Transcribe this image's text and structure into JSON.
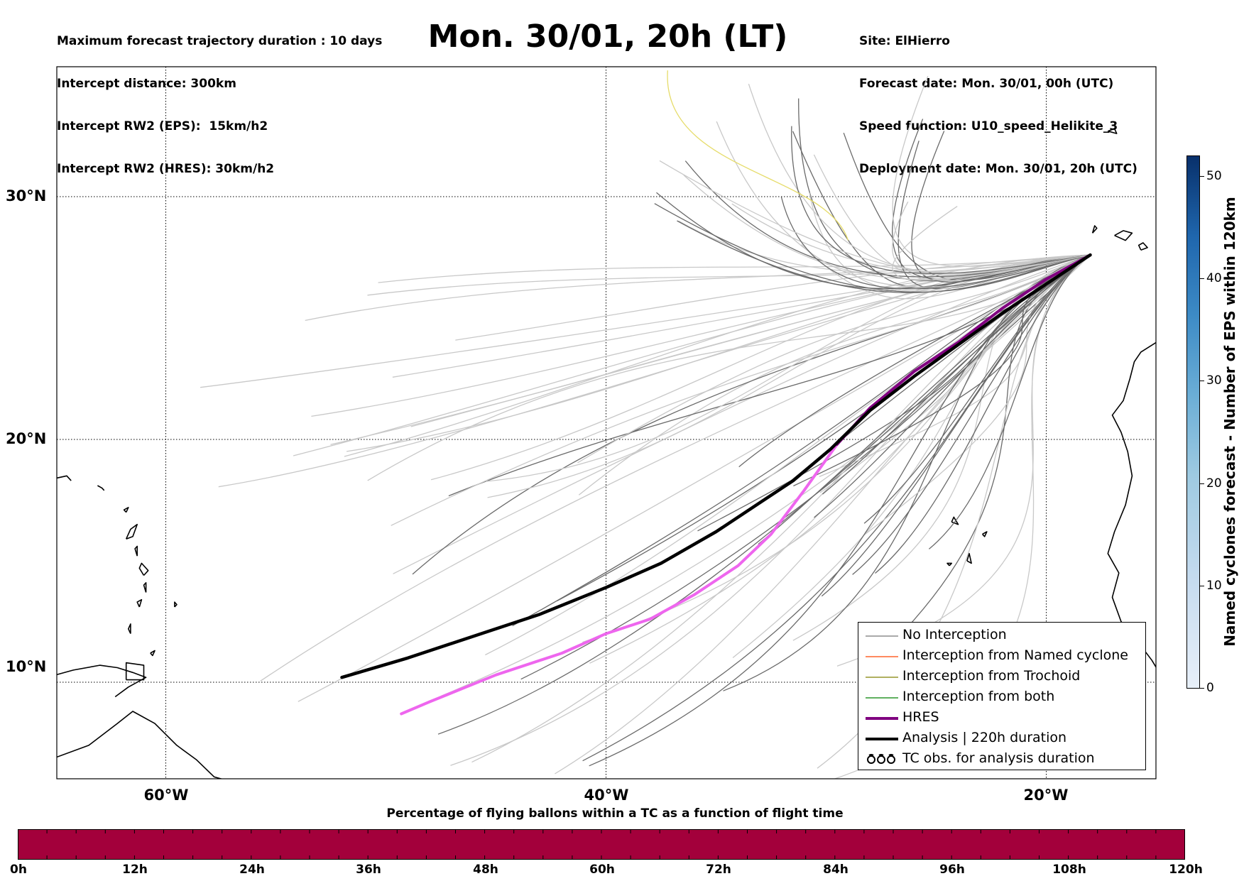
{
  "header_left": [
    "Maximum forecast trajectory duration : 10 days",
    "Intercept distance: 300km",
    "Intercept RW2 (EPS):  15km/h2",
    "Intercept RW2 (HRES): 30km/h2"
  ],
  "title": "Mon. 30/01, 20h (LT)",
  "header_right": [
    "Site: ElHierro",
    "Forecast date: Mon. 30/01, 00h (UTC)",
    "Speed function: U10_speed_Helikite_3",
    "Deployment date: Mon. 30/01, 20h (UTC)"
  ],
  "map": {
    "lat_labels": [
      "30°N",
      "20°N",
      "10°N"
    ],
    "lon_labels": [
      "60°W",
      "40°W",
      "20°W"
    ],
    "lat_range": [
      5.5,
      35
    ],
    "lon_range": [
      -65,
      -15
    ],
    "site": {
      "name": "ElHierro",
      "lon": -18,
      "lat": 27.6
    },
    "hres_track": [
      [
        -18,
        27.6
      ],
      [
        -20,
        26.6
      ],
      [
        -22,
        25.4
      ],
      [
        -24,
        24.0
      ],
      [
        -26,
        22.8
      ],
      [
        -28,
        21.3
      ],
      [
        -29.5,
        19.8
      ],
      [
        -31,
        17.9
      ],
      [
        -32.5,
        16.1
      ],
      [
        -34,
        14.8
      ],
      [
        -36,
        13.6
      ],
      [
        -38,
        12.6
      ],
      [
        -40,
        12.0
      ],
      [
        -42,
        11.2
      ],
      [
        -45,
        10.3
      ],
      [
        -48,
        9.2
      ],
      [
        -49.3,
        8.7
      ]
    ],
    "analysis_track": [
      [
        -18,
        27.6
      ],
      [
        -20,
        26.4
      ],
      [
        -22,
        25.2
      ],
      [
        -24,
        23.9
      ],
      [
        -26,
        22.6
      ],
      [
        -28,
        21.2
      ],
      [
        -29.8,
        19.6
      ],
      [
        -31.5,
        18.3
      ],
      [
        -33,
        17.4
      ],
      [
        -35,
        16.2
      ],
      [
        -37.5,
        14.9
      ],
      [
        -40,
        13.9
      ],
      [
        -43,
        12.8
      ],
      [
        -46,
        11.9
      ],
      [
        -49,
        11.0
      ],
      [
        -52,
        10.2
      ]
    ]
  },
  "legend": [
    {
      "symbol": "line",
      "color": "#777777",
      "width": 1,
      "label": "No Interception"
    },
    {
      "symbol": "line",
      "color": "#ff4500",
      "width": 1,
      "label": "Interception from Named cyclone"
    },
    {
      "symbol": "line",
      "color": "#808000",
      "width": 1,
      "label": "Interception from Trochoid"
    },
    {
      "symbol": "line",
      "color": "#008000",
      "width": 1,
      "label": "Interception from both"
    },
    {
      "symbol": "line",
      "color": "#800080",
      "width": 4,
      "label": "HRES"
    },
    {
      "symbol": "line",
      "color": "#000000",
      "width": 4,
      "label": "Analysis | 220h duration"
    },
    {
      "symbol": "tc",
      "color": "#000000",
      "width": 1,
      "label": "TC obs. for analysis duration"
    }
  ],
  "colorbar_vertical": {
    "label": "Named cyclones forecast - Number of EPS within 120km",
    "ticks": [
      "0",
      "10",
      "20",
      "30",
      "40",
      "50"
    ],
    "range": [
      0,
      52
    ]
  },
  "colorbar_horizontal": {
    "title": "Percentage of flying ballons within a TC as a function of flight time",
    "labels": [
      "0h",
      "12h",
      "24h",
      "36h",
      "48h",
      "60h",
      "72h",
      "84h",
      "96h",
      "108h",
      "120h"
    ],
    "color": "#a3003b"
  }
}
